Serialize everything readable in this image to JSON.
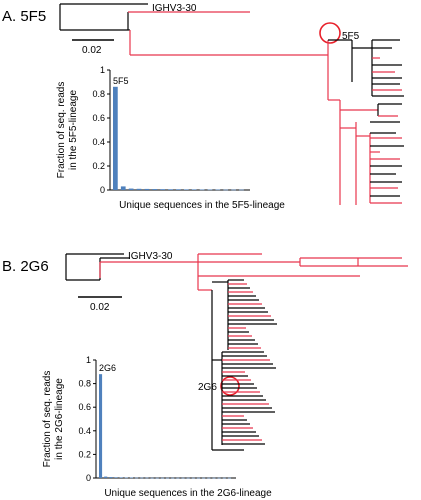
{
  "panels": [
    {
      "label": "A. 5F5",
      "germline_label": "IGHV3-30",
      "scale_label": "0.02",
      "highlight_label": "5F5",
      "chart_data": {
        "type": "bar",
        "ylabel": "Fraction of seq. reads in the 5F5-lineage",
        "ylabel_lines": [
          "Fraction of seq. reads",
          "in the 5F5-lineage"
        ],
        "xlabel": "Unique sequences in the 5F5-lineage",
        "ylim": [
          0,
          1
        ],
        "yticks": [
          "0",
          "0.2",
          "0.4",
          "0.6",
          "0.8",
          "1"
        ],
        "bar_label": "5F5",
        "values": [
          0.86,
          0.03,
          0.012,
          0.01,
          0.009,
          0.008,
          0.007,
          0.006,
          0.006,
          0.005,
          0.005,
          0.004,
          0.004,
          0.004,
          0.003,
          0.003,
          0.003
        ],
        "bar_color": "#4f81bd"
      }
    },
    {
      "label": "B. 2G6",
      "germline_label": "IGHV3-30",
      "scale_label": "0.02",
      "highlight_label": "2G6",
      "chart_data": {
        "type": "bar",
        "ylabel": "Fraction of seq. reads in the 2G6-lineage",
        "ylabel_lines": [
          "Fraction of seq. reads",
          "in the 2G6-lineage"
        ],
        "xlabel": "Unique sequences in the 2G6-lineage",
        "ylim": [
          0,
          1
        ],
        "yticks": [
          "0",
          "0.2",
          "0.4",
          "0.6",
          "0.8",
          "1"
        ],
        "bar_label": "2G6",
        "values": [
          0.88,
          0.012,
          0.008,
          0.006,
          0.005,
          0.004,
          0.004,
          0.003,
          0.003,
          0.003,
          0.002,
          0.002,
          0.002,
          0.002,
          0.002,
          0.002,
          0.002,
          0.002,
          0.002,
          0.002,
          0.002,
          0.002,
          0.002,
          0.002,
          0.002,
          0.002
        ],
        "bar_color": "#4f81bd"
      }
    }
  ],
  "colors": {
    "tree_black": "#000000",
    "tree_red": "#e8364e",
    "circle": "#e8202a"
  }
}
